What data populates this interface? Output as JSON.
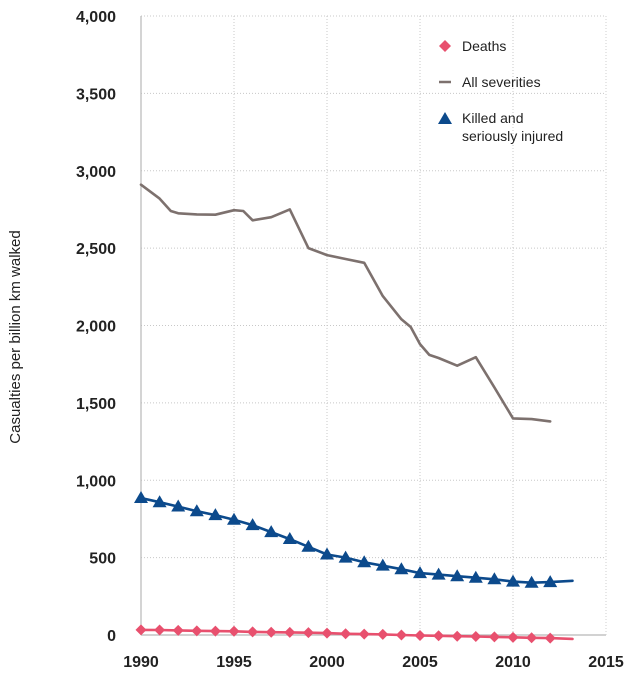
{
  "chart_data": {
    "type": "line",
    "title": "",
    "xlabel": "",
    "ylabel": "Casualties per billion km walked",
    "xlim": [
      1990,
      2015
    ],
    "ylim": [
      0,
      4000
    ],
    "x_ticks": [
      "1990",
      "1995",
      "2000",
      "2005",
      "2010",
      "2015"
    ],
    "y_ticks": [
      "0",
      "500",
      "1,000",
      "1,500",
      "2,000",
      "2,500",
      "3,000",
      "3,500",
      "4,000"
    ],
    "grid": "dotted",
    "legend_position": "top-right",
    "legend": [
      {
        "label": "Deaths"
      },
      {
        "label": "All severities"
      },
      {
        "label_lines": [
          "Killed and",
          "seriously injured"
        ]
      }
    ],
    "series": [
      {
        "name": "Deaths",
        "color": "#e8506e",
        "marker": "diamond",
        "x": [
          1990,
          1991,
          1992,
          1993,
          1994,
          1995,
          1996,
          1997,
          1998,
          1999,
          2000,
          2001,
          2002,
          2003,
          2004,
          2005,
          2006,
          2007,
          2008,
          2009,
          2010,
          2011,
          2012
        ],
        "y": [
          33,
          32,
          30,
          27,
          25,
          24,
          20,
          18,
          17,
          15,
          12,
          8,
          6,
          4,
          0,
          -3,
          -5,
          -8,
          -10,
          -12,
          -15,
          -18,
          -20
        ],
        "line_end": [
          2013.2,
          -25
        ]
      },
      {
        "name": "All severities",
        "color": "#7d716e",
        "marker": "none",
        "x": [
          1990,
          1991,
          1991.6,
          1992,
          1993,
          1994,
          1995,
          1995.5,
          1996,
          1997,
          1998,
          1999,
          2000,
          2001,
          2002,
          2003,
          2004,
          2004.5,
          2005,
          2005.5,
          2006,
          2007,
          2008,
          2009,
          2010,
          2011,
          2012
        ],
        "y": [
          2910,
          2820,
          2740,
          2725,
          2718,
          2716,
          2745,
          2740,
          2680,
          2700,
          2750,
          2500,
          2455,
          2430,
          2405,
          2190,
          2040,
          1990,
          1880,
          1810,
          1790,
          1740,
          1795,
          1600,
          1400,
          1395,
          1380
        ]
      },
      {
        "name": "Killed and seriously injured",
        "color": "#0c4a8c",
        "marker": "triangle",
        "x": [
          1990,
          1991,
          1992,
          1993,
          1994,
          1995,
          1996,
          1997,
          1998,
          1999,
          2000,
          2001,
          2002,
          2003,
          2004,
          2005,
          2006,
          2007,
          2008,
          2009,
          2010,
          2011,
          2012
        ],
        "y": [
          885,
          858,
          830,
          800,
          775,
          745,
          710,
          665,
          620,
          570,
          520,
          500,
          470,
          448,
          425,
          400,
          390,
          380,
          370,
          360,
          345,
          338,
          342
        ],
        "line_end": [
          2013.2,
          350
        ]
      }
    ]
  }
}
